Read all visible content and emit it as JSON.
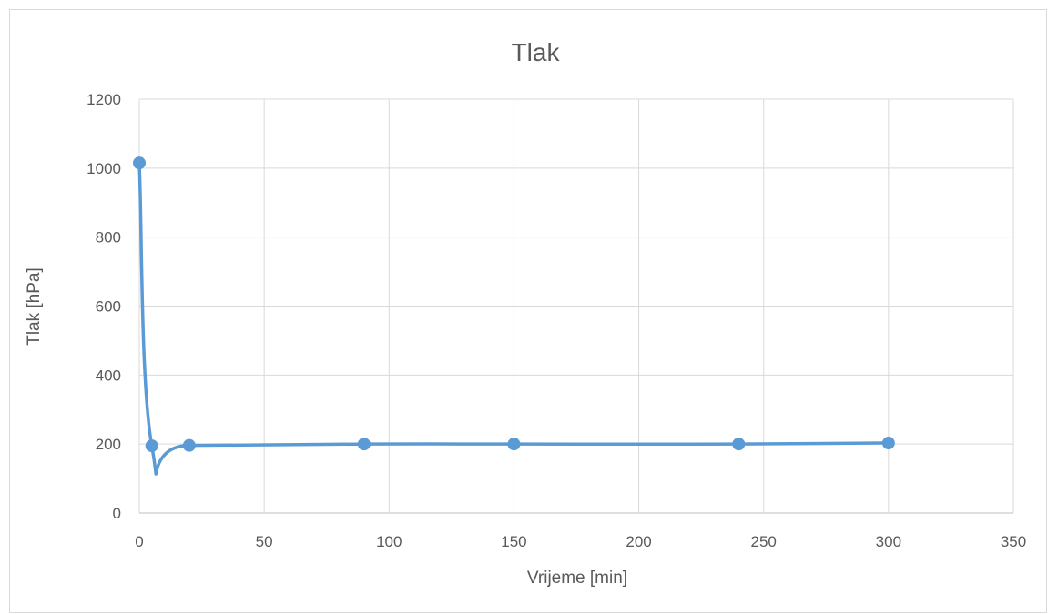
{
  "chart_data": {
    "type": "scatter",
    "title": "Tlak",
    "xlabel": "Vrijeme [min]",
    "ylabel": "Tlak [hPa]",
    "xlim": [
      0,
      350
    ],
    "ylim": [
      0,
      1200
    ],
    "x_ticks": [
      0,
      50,
      100,
      150,
      200,
      250,
      300,
      350
    ],
    "y_ticks": [
      0,
      200,
      400,
      600,
      800,
      1000,
      1200
    ],
    "grid": true,
    "line_style": "smooth",
    "series": [
      {
        "x": [
          0,
          5,
          20,
          90,
          150,
          240,
          300
        ],
        "y": [
          1015,
          195,
          196,
          200,
          200,
          200,
          203
        ],
        "color": "#5b9bd5"
      }
    ]
  }
}
